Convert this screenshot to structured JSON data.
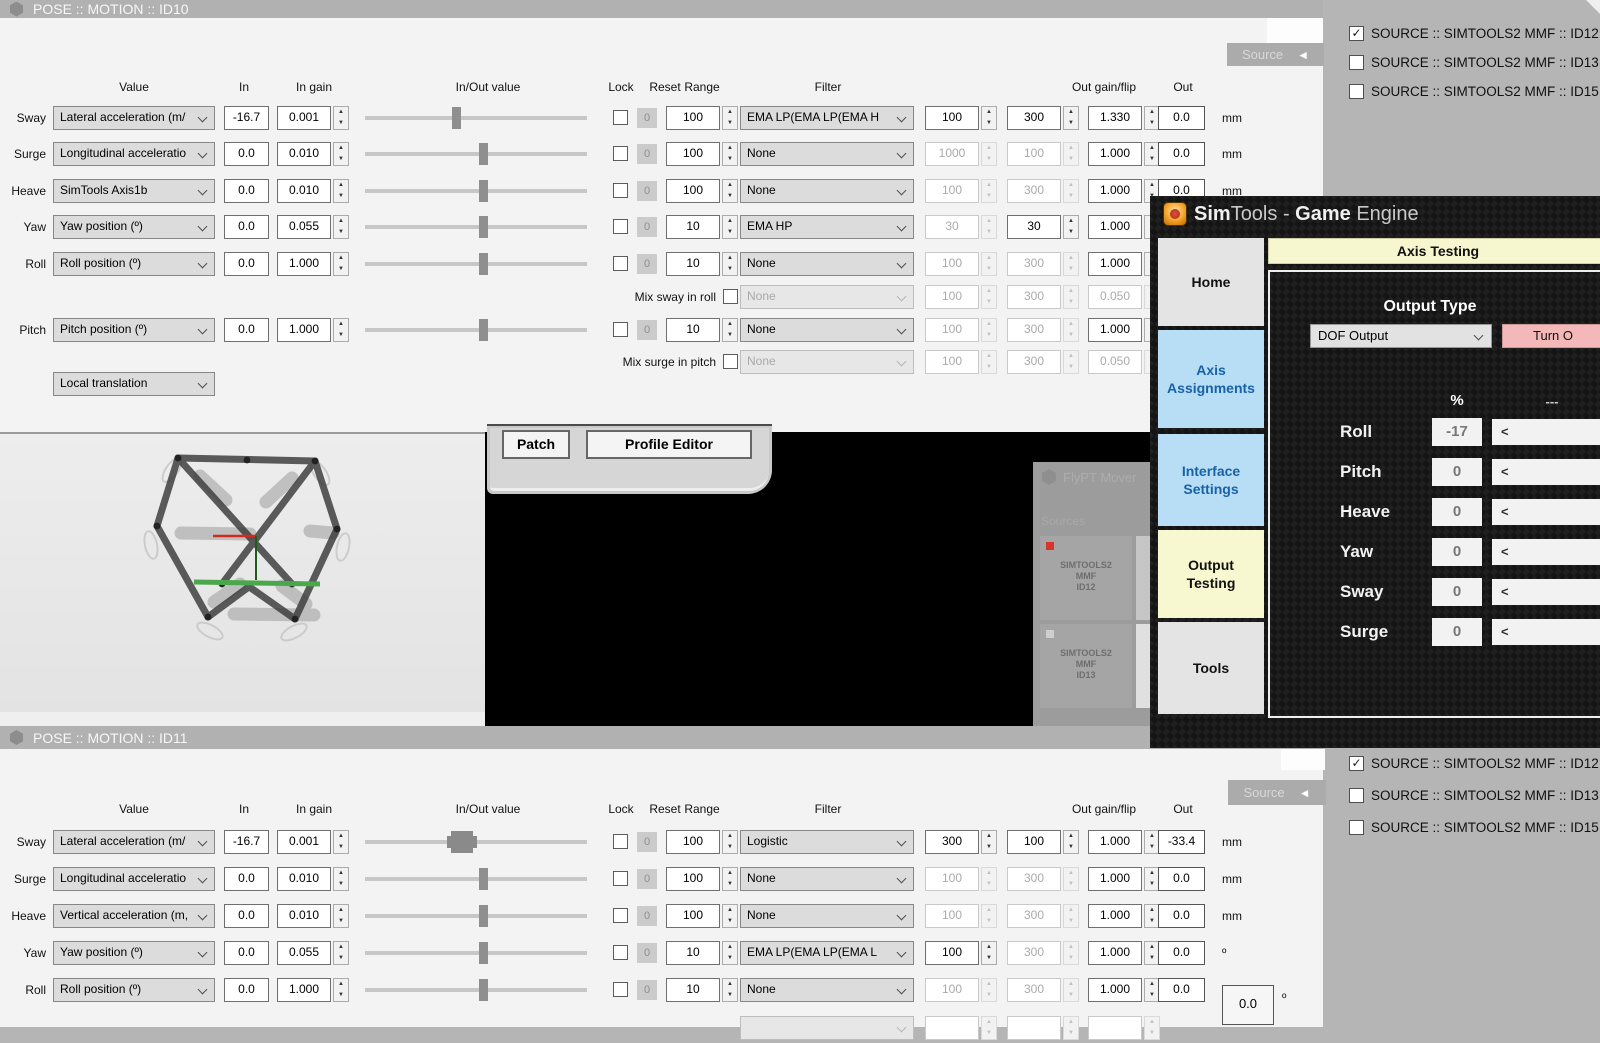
{
  "headers": {
    "value": "Value",
    "in": "In",
    "in_gain": "In gain",
    "inout": "In/Out value",
    "lock": "Lock",
    "reset": "Reset",
    "range": "Range",
    "filter": "Filter",
    "out_gain": "Out gain/flip",
    "out": "Out"
  },
  "shared": {
    "source_tab": "Source",
    "sources": [
      {
        "label": "SOURCE :: SIMTOOLS2 MMF :: ID12",
        "checked": true
      },
      {
        "label": "SOURCE :: SIMTOOLS2 MMF :: ID13",
        "checked": false
      },
      {
        "label": "SOURCE :: SIMTOOLS2 MMF :: ID15",
        "checked": false
      }
    ]
  },
  "panels": {
    "id10": {
      "title": "POSE :: MOTION :: ID10",
      "mode": "Local translation",
      "rows": [
        {
          "label": "Sway",
          "value": "Lateral acceleration (m/",
          "in": "-16.7",
          "gain": "0.001",
          "slider": 0.41,
          "range": "100",
          "filter": "EMA LP(EMA LP(EMA H",
          "p1": "100",
          "p2": "300",
          "og": "1.330",
          "out": "0.0",
          "unit": "mm"
        },
        {
          "label": "Surge",
          "value": "Longitudinal acceleratio",
          "in": "0.0",
          "gain": "0.010",
          "slider": 0.537,
          "range": "100",
          "filter": "None",
          "p1": "1000",
          "p1d": 1,
          "p2": "100",
          "p2d": 1,
          "og": "1.000",
          "out": "0.0",
          "unit": "mm"
        },
        {
          "label": "Heave",
          "value": "SimTools Axis1b",
          "in": "0.0",
          "gain": "0.010",
          "slider": 0.537,
          "range": "100",
          "filter": "None",
          "p1": "100",
          "p1d": 1,
          "p2": "300",
          "p2d": 1,
          "og": "1.000",
          "out": "0.0",
          "unit": "mm"
        },
        {
          "label": "Yaw",
          "value": "Yaw position (º)",
          "in": "0.0",
          "gain": "0.055",
          "slider": 0.537,
          "range": "10",
          "filter": "EMA HP",
          "p1": "30",
          "p1d": 1,
          "p2": "30",
          "og": "1.000",
          "out": "",
          "unit": ""
        },
        {
          "label": "Roll",
          "value": "Roll position (º)",
          "in": "0.0",
          "gain": "1.000",
          "slider": 0.537,
          "range": "10",
          "filter": "None",
          "p1": "100",
          "p1d": 1,
          "p2": "300",
          "p2d": 1,
          "og": "1.000",
          "out": "",
          "unit": ""
        },
        {
          "mix": true,
          "label": "Mix sway in roll",
          "filter": "None",
          "fdis": 1,
          "p1": "100",
          "p1d": 1,
          "p2": "300",
          "p2d": 1,
          "og": "0.050",
          "ogd": 1
        },
        {
          "label": "Pitch",
          "value": "Pitch position (º)",
          "in": "0.0",
          "gain": "1.000",
          "slider": 0.537,
          "range": "10",
          "filter": "None",
          "p1": "100",
          "p1d": 1,
          "p2": "300",
          "p2d": 1,
          "og": "1.000",
          "out": "",
          "unit": ""
        },
        {
          "mix": true,
          "label": "Mix surge in pitch",
          "filter": "None",
          "fdis": 1,
          "p1": "100",
          "p1d": 1,
          "p2": "300",
          "p2d": 1,
          "og": "0.050",
          "ogd": 1
        }
      ]
    },
    "id11": {
      "title": "POSE :: MOTION :: ID11",
      "rows": [
        {
          "label": "Sway",
          "value": "Lateral acceleration (m/",
          "in": "-16.7",
          "gain": "0.001",
          "slider": 0.43,
          "big": 1,
          "range": "100",
          "filter": "Logistic",
          "p1": "300",
          "p2": "100",
          "og": "1.000",
          "out": "-33.4",
          "unit": "mm"
        },
        {
          "label": "Surge",
          "value": "Longitudinal acceleratio",
          "in": "0.0",
          "gain": "0.010",
          "slider": 0.537,
          "range": "100",
          "filter": "None",
          "p1": "100",
          "p1d": 1,
          "p2": "300",
          "p2d": 1,
          "og": "1.000",
          "out": "0.0",
          "unit": "mm"
        },
        {
          "label": "Heave",
          "value": "Vertical acceleration (m,",
          "in": "0.0",
          "gain": "0.010",
          "slider": 0.537,
          "range": "100",
          "filter": "None",
          "p1": "100",
          "p1d": 1,
          "p2": "300",
          "p2d": 1,
          "og": "1.000",
          "out": "0.0",
          "unit": "mm"
        },
        {
          "label": "Yaw",
          "value": "Yaw position (º)",
          "in": "0.0",
          "gain": "0.055",
          "slider": 0.537,
          "range": "10",
          "filter": "EMA LP(EMA LP(EMA L",
          "p1": "100",
          "p2": "300",
          "p2d": 1,
          "og": "1.000",
          "out": "0.0",
          "unit": "º"
        },
        {
          "label": "Roll",
          "value": "Roll position (º)",
          "in": "0.0",
          "gain": "1.000",
          "slider": 0.537,
          "range": "10",
          "filter": "None",
          "p1": "100",
          "p1d": 1,
          "p2": "300",
          "p2d": 1,
          "og": "1.000",
          "out": "0.0",
          "unit": ""
        },
        {
          "mix": true,
          "label": "",
          "filter": "",
          "fdis": 1,
          "p1": "",
          "p1d": 1,
          "p2": "",
          "p2d": 1,
          "og": "",
          "ogd": 1
        }
      ],
      "out_alt": {
        "value": "0.0",
        "unit": "º"
      }
    }
  },
  "patch_window": {
    "patch": "Patch",
    "profile_editor": "Profile Editor"
  },
  "flypt": {
    "title": "FlyPT Mover",
    "sources_label": "Sources",
    "tiles": [
      {
        "lines": "SIMTOOLS2\nMMF\nID12",
        "status_color": "#d8342a"
      },
      {
        "lines": "SIMTOOLS2\nMMF\nID13",
        "status_color": "#cfcfcf"
      }
    ]
  },
  "simtools": {
    "title_segments": [
      {
        "t": "Sim",
        "b": 1
      },
      {
        "t": "Tools",
        "b": 0
      },
      {
        "t": " - ",
        "b": 0
      },
      {
        "t": "Game",
        "b": 1
      },
      {
        "t": " Engine",
        "b": 0
      }
    ],
    "nav": [
      {
        "label": "Home",
        "style": "grey"
      },
      {
        "label": "Axis Assignments",
        "style": "blue"
      },
      {
        "label": "Interface Settings",
        "style": "blue"
      },
      {
        "label": "Output Testing",
        "style": "yellow"
      },
      {
        "label": "Tools",
        "style": "grey"
      }
    ],
    "tab": "Axis Testing",
    "output_type_label": "Output Type",
    "output_type_value": "DOF Output",
    "turn_button": "Turn O",
    "percent_header": "%",
    "dash_header": "---",
    "axes": [
      {
        "name": "Roll",
        "value": "-17"
      },
      {
        "name": "Pitch",
        "value": "0"
      },
      {
        "name": "Heave",
        "value": "0"
      },
      {
        "name": "Yaw",
        "value": "0"
      },
      {
        "name": "Sway",
        "value": "0"
      },
      {
        "name": "Surge",
        "value": "0"
      }
    ],
    "colors": {
      "nav_blue": "#b7def5",
      "nav_blue_text": "#1a62a8",
      "nav_yellow": "#f7f7d0",
      "tab_bg": "#f6f6cf",
      "turn_bg": "#f5b8b8",
      "status_red": "#d8342a"
    }
  }
}
